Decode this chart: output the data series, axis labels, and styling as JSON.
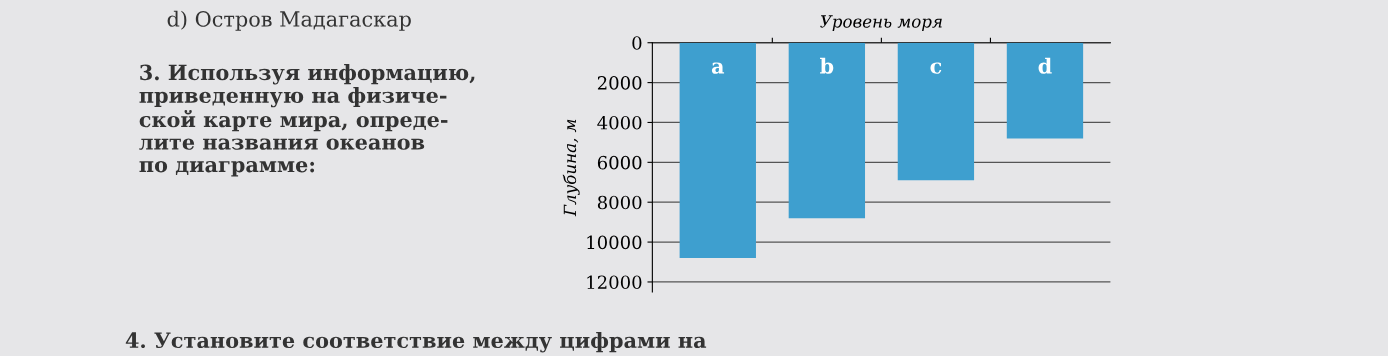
{
  "chart_data": {
    "type": "bar",
    "xlabel": "Уровень моря",
    "ylabel": "Глубина, м",
    "categories": [
      "a",
      "b",
      "c",
      "d"
    ],
    "values": [
      10800,
      8800,
      6900,
      4800
    ],
    "color": "#3e9fcf",
    "ylim": [
      12500,
      0
    ],
    "yticks": [
      0,
      2000,
      4000,
      6000,
      8000,
      10000,
      12000
    ],
    "grid": "y",
    "annotations": [
      "d) Остров Мадагаскар",
      "3. Используя информацию,\nприведенную на физиче-\nской карте мира, опреде-\nлите названия океанов\nпо диаграмме:",
      "4. Установите соответствие между цифрами на"
    ]
  }
}
